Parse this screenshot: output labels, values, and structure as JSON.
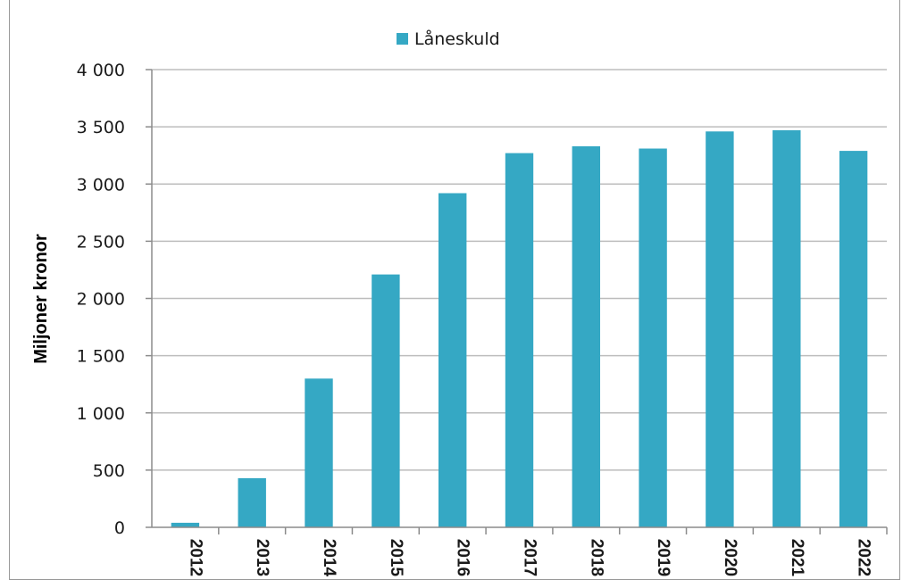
{
  "chart_data": {
    "type": "bar",
    "categories": [
      "2012",
      "2013",
      "2014",
      "2015",
      "2016",
      "2017",
      "2018",
      "2019",
      "2020",
      "2021",
      "2022"
    ],
    "series": [
      {
        "name": "Låneskuld",
        "values": [
          40,
          430,
          1300,
          2210,
          2920,
          3270,
          3330,
          3310,
          3460,
          3470,
          3290
        ]
      }
    ],
    "ylabel": "Miljoner kronor",
    "xlabel": "",
    "ylim": [
      0,
      4000
    ],
    "yticks": [
      0,
      500,
      1000,
      1500,
      2000,
      2500,
      3000,
      3500,
      4000
    ],
    "ytick_labels": [
      "0",
      "500",
      "1 000",
      "1 500",
      "2 000",
      "2 500",
      "3 000",
      "3 500",
      "4 000"
    ],
    "grid": true,
    "legend_position": "top-center",
    "colors": {
      "bar": "#35a8c4",
      "grid": "#bdbdbd",
      "axis": "#8c8c8c"
    }
  }
}
